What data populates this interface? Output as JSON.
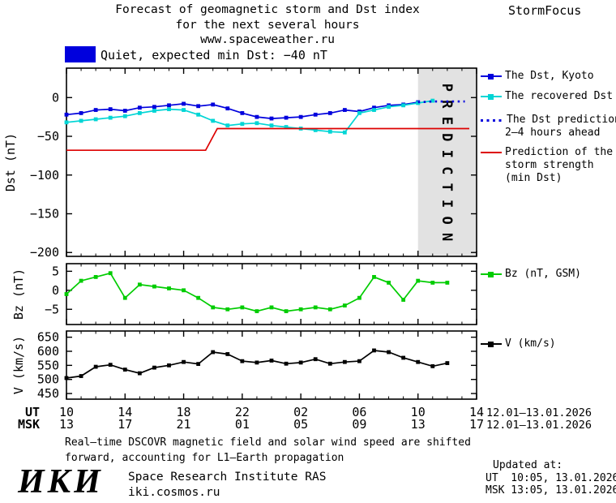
{
  "header": {
    "title_line1": "Forecast of geomagnetic storm and Dst index",
    "title_line2": "for the next several hours",
    "title_line3": "www.spaceweather.ru",
    "brand": "StormFocus"
  },
  "status": {
    "label": "Quiet, expected min Dst: −40 nT"
  },
  "legend": {
    "dst_kyoto": "The Dst, Kyoto",
    "recovered": "The recovered Dst",
    "prediction_line1": "The Dst prediction",
    "prediction_line2": "2–4 hours ahead",
    "storm_line1": "Prediction of the",
    "storm_line2": "storm strength",
    "storm_line3": "(min Dst)",
    "bz": "Bz (nT, GSM)",
    "v": "V (km/s)"
  },
  "colors": {
    "dst_blue": "#0000dd",
    "recovered_cyan": "#00d5d5",
    "storm_red": "#dd0000",
    "bz_green": "#00cc00",
    "v_black": "#000000",
    "band": "#e2e2e2",
    "band_text": "#9a9a9a",
    "status_swatch": "#0000dd"
  },
  "chart_data": {
    "type": "line",
    "title": "Forecast of geomagnetic storm and Dst index for the next several hours",
    "panels": [
      {
        "type": "line",
        "ylabel": "Dst (nT)",
        "ylim": [
          -205,
          38
        ],
        "yticks": [
          0,
          -50,
          -100,
          -150,
          -200
        ],
        "prediction_band": {
          "from_hour": 34,
          "to_hour": 38,
          "label": "PREDICTION"
        },
        "series": [
          {
            "name": "The Dst, Kyoto",
            "color": "dst_blue",
            "marker": "square",
            "style": "solid",
            "x": [
              10,
              11,
              12,
              13,
              14,
              15,
              16,
              17,
              18,
              19,
              20,
              21,
              22,
              23,
              24,
              25,
              26,
              27,
              28,
              29,
              30,
              31,
              32,
              33,
              34
            ],
            "y": [
              -22,
              -20,
              -16,
              -15,
              -17,
              -13,
              -12,
              -10,
              -8,
              -11,
              -9,
              -14,
              -20,
              -25,
              -27,
              -26,
              -25,
              -22,
              -20,
              -16,
              -18,
              -13,
              -10,
              -9,
              -6
            ]
          },
          {
            "name": "The recovered Dst",
            "color": "recovered_cyan",
            "marker": "square",
            "style": "solid",
            "x": [
              10,
              11,
              12,
              13,
              14,
              15,
              16,
              17,
              18,
              19,
              20,
              21,
              22,
              23,
              24,
              25,
              26,
              27,
              28,
              29,
              30,
              31,
              32,
              33,
              34,
              35
            ],
            "y": [
              -32,
              -30,
              -28,
              -26,
              -24,
              -20,
              -17,
              -15,
              -16,
              -22,
              -30,
              -36,
              -34,
              -33,
              -36,
              -38,
              -40,
              -42,
              -44,
              -45,
              -20,
              -16,
              -12,
              -10,
              -7,
              -4
            ]
          },
          {
            "name": "The Dst prediction 2–4 hours ahead",
            "color": "dst_blue",
            "marker": "none",
            "style": "dotted",
            "x": [
              34,
              35,
              36,
              37.2
            ],
            "y": [
              -6,
              -5,
              -5,
              -5
            ]
          },
          {
            "name": "Prediction of the storm strength (min Dst)",
            "color": "storm_red",
            "marker": "none",
            "style": "solid",
            "x": [
              10,
              19.5,
              20.3,
              37.5
            ],
            "y": [
              -68,
              -68,
              -40,
              -40
            ]
          }
        ]
      },
      {
        "type": "line",
        "ylabel": "Bz (nT)",
        "ylim": [
          -9,
          7
        ],
        "yticks": [
          5,
          0,
          -5
        ],
        "series": [
          {
            "name": "Bz (nT, GSM)",
            "color": "bz_green",
            "marker": "square",
            "style": "solid",
            "x": [
              10,
              11,
              12,
              13,
              14,
              15,
              16,
              17,
              18,
              19,
              20,
              21,
              22,
              23,
              24,
              25,
              26,
              27,
              28,
              29,
              30,
              31,
              32,
              33,
              34,
              35,
              36
            ],
            "y": [
              -1,
              2.5,
              3.5,
              4.5,
              -2,
              1.5,
              1,
              0.5,
              0,
              -2,
              -4.5,
              -5,
              -4.5,
              -5.5,
              -4.5,
              -5.5,
              -5,
              -4.5,
              -5,
              -4,
              -2,
              3.5,
              2,
              -2.5,
              2.5,
              2,
              2
            ]
          }
        ]
      },
      {
        "type": "line",
        "ylabel": "V (km/s)",
        "ylim": [
          430,
          672
        ],
        "yticks": [
          650,
          600,
          550,
          500,
          450
        ],
        "series": [
          {
            "name": "V (km/s)",
            "color": "v_black",
            "marker": "square",
            "style": "solid",
            "x": [
              10,
              11,
              12,
              13,
              14,
              15,
              16,
              17,
              18,
              19,
              20,
              21,
              22,
              23,
              24,
              25,
              26,
              27,
              28,
              29,
              30,
              31,
              32,
              33,
              34,
              35,
              36
            ],
            "y": [
              505,
              512,
              545,
              552,
              535,
              522,
              542,
              550,
              562,
              555,
              597,
              590,
              565,
              560,
              567,
              556,
              560,
              572,
              556,
              562,
              565,
              603,
              597,
              577,
              562,
              547,
              558
            ]
          }
        ]
      }
    ],
    "xaxis": {
      "xlim_hours": [
        10,
        38
      ],
      "tick_hours": [
        10,
        14,
        18,
        22,
        26,
        30,
        34,
        38
      ],
      "ut_label": "UT",
      "msk_label": "MSK",
      "ut_ticks": [
        "10",
        "14",
        "18",
        "22",
        "02",
        "06",
        "10",
        "14"
      ],
      "msk_ticks": [
        "13",
        "17",
        "21",
        "01",
        "05",
        "09",
        "13",
        "17"
      ],
      "ut_date": "12.01–13.01.2026",
      "msk_date": "12.01–13.01.2026"
    }
  },
  "footer": {
    "note_line1": "Real–time DSCOVR magnetic field and solar wind speed are shifted",
    "note_line2": "forward, accounting for L1–Earth propagation",
    "logo": "ИКИ",
    "institute": "Space Research Institute RAS",
    "site": "iki.cosmos.ru",
    "updated_label": "Updated at:",
    "updated_ut": "UT  10:05, 13.01.2026",
    "updated_msk": "MSK 13:05, 13.01.2026"
  }
}
